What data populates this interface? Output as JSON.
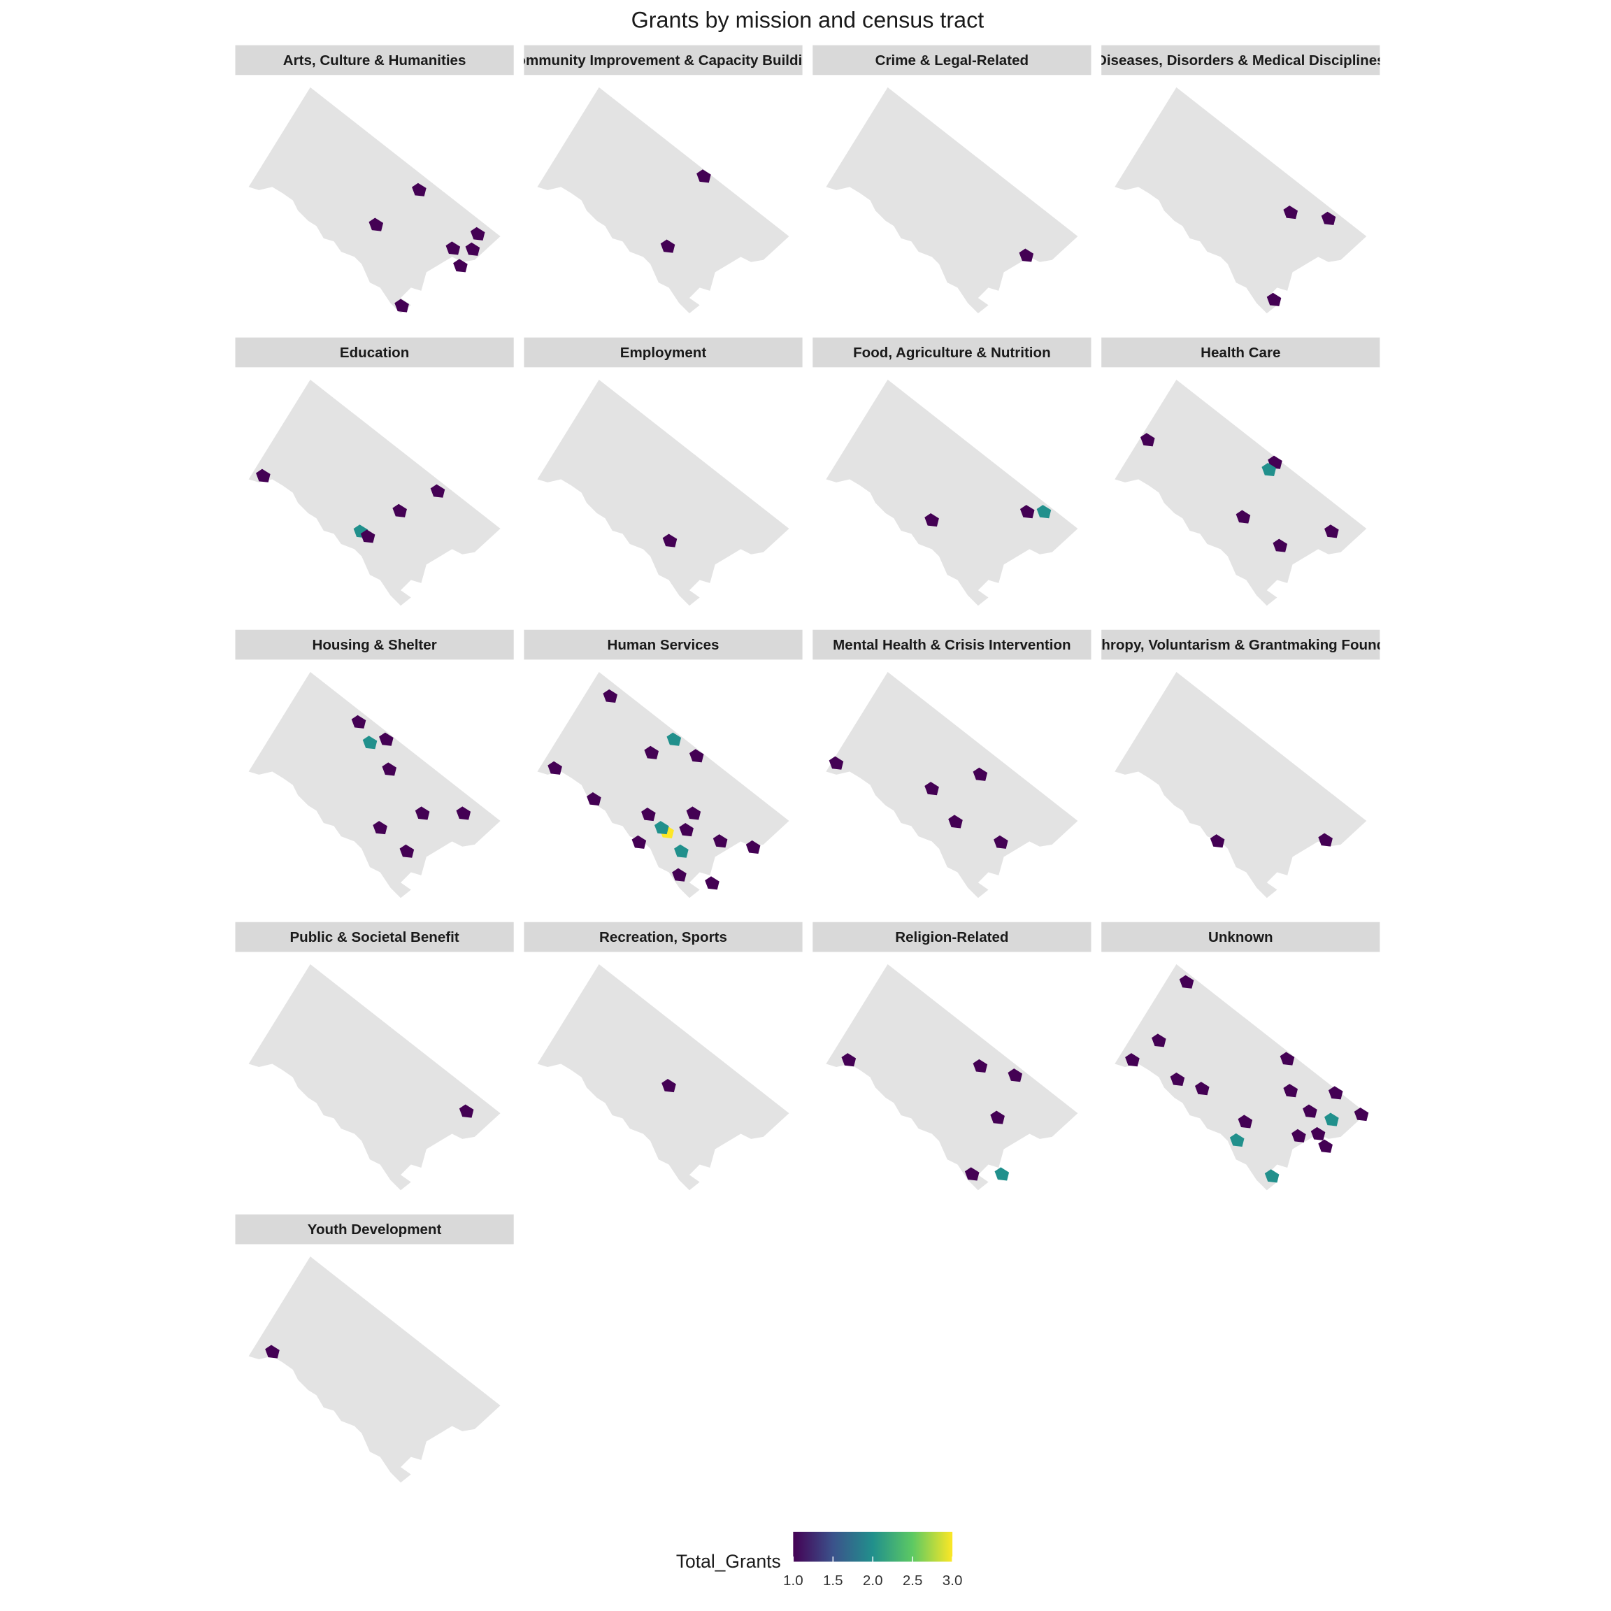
{
  "chart_data": {
    "type": "choropleth",
    "title": "Grants by mission and census tract",
    "legend_title": "Total_Grants",
    "xlim": [
      0,
      100
    ],
    "ylim": [
      0,
      100
    ],
    "clim": [
      1,
      3
    ],
    "colorscale": [
      "#440154",
      "#3b528b",
      "#21908c",
      "#5dc963",
      "#fde725"
    ],
    "base_color": "#e3e3e3",
    "cticks": [
      {
        "value": 1,
        "label": "1.0"
      },
      {
        "value": 1.5,
        "label": "1.5"
      },
      {
        "value": 2,
        "label": "2.0"
      },
      {
        "value": 2.5,
        "label": "2.5"
      },
      {
        "value": 3,
        "label": "3.0"
      }
    ],
    "facets": [
      {
        "name": "Arts, Culture & Humanities",
        "x": [
          67.7,
          50.8,
          90.7,
          88.7,
          81,
          83.9,
          60.9
        ],
        "y": [
          54.5,
          39.1,
          35,
          28.2,
          28.6,
          20.9,
          3.2
        ],
        "values": [
          1,
          1,
          1,
          1,
          1,
          1,
          1
        ]
      },
      {
        "name": "Community Improvement & Capacity Building",
        "x": [
          66.1,
          52
        ],
        "y": [
          60.5,
          29.5
        ],
        "values": [
          1,
          1
        ]
      },
      {
        "name": "Crime & Legal-Related",
        "x": [
          79.4
        ],
        "y": [
          25.5
        ],
        "values": [
          1
        ]
      },
      {
        "name": "Diseases, Disorders & Medical Disciplines",
        "x": [
          69.8,
          84.7,
          63.3
        ],
        "y": [
          44.5,
          41.8,
          5.9
        ],
        "values": [
          1,
          1,
          1
        ]
      },
      {
        "name": "Education",
        "x": [
          6.5,
          75,
          60.1,
          44.8,
          47.6
        ],
        "y": [
          57.3,
          50.5,
          41.8,
          32.7,
          30.5
        ],
        "values": [
          1,
          1,
          1,
          2,
          1
        ]
      },
      {
        "name": "Employment",
        "x": [
          52.8
        ],
        "y": [
          28.6
        ],
        "values": [
          1
        ]
      },
      {
        "name": "Food, Agriculture & Nutrition",
        "x": [
          42.3,
          79.8,
          86.3
        ],
        "y": [
          37.7,
          41.4,
          41.4
        ],
        "values": [
          1,
          1,
          2
        ]
      },
      {
        "name": "Health Care",
        "x": [
          13.7,
          63.7,
          61.3,
          51.2,
          65.7,
          85.9
        ],
        "y": [
          73.2,
          63.2,
          60,
          39.1,
          26.4,
          32.7
        ],
        "values": [
          1,
          1,
          2,
          1,
          1,
          1
        ]
      },
      {
        "name": "Housing & Shelter",
        "x": [
          44,
          48.4,
          54.8,
          56,
          69,
          85.1,
          52.4,
          62.9
        ],
        "y": [
          77.7,
          68.6,
          70,
          56.8,
          37.3,
          37.3,
          30.9,
          20.5
        ],
        "values": [
          1,
          2,
          1,
          1,
          1,
          1,
          1,
          1
        ]
      },
      {
        "name": "Human Services",
        "x": [
          29.4,
          54.4,
          45.6,
          63.3,
          7.7,
          23,
          44.4,
          62.1,
          51.6,
          40.7,
          59.3,
          72.6,
          85.5,
          57.3,
          56.5,
          69.4,
          49.6
        ],
        "y": [
          89.1,
          70,
          64.1,
          62.7,
          57.3,
          43.6,
          36.8,
          37.3,
          29.1,
          24.5,
          30,
          25,
          22.3,
          20.5,
          10,
          6.4,
          30.9
        ],
        "values": [
          1,
          2,
          1,
          1,
          1,
          1,
          1,
          1,
          3,
          1,
          1,
          1,
          1,
          2,
          1,
          1,
          2
        ]
      },
      {
        "name": "Mental Health & Crisis Intervention",
        "x": [
          4.8,
          42.3,
          61.3,
          51.6,
          69.4
        ],
        "y": [
          59.5,
          48.2,
          54.5,
          33.6,
          24.5
        ],
        "values": [
          1,
          1,
          1,
          1,
          1
        ]
      },
      {
        "name": "Philanthropy, Voluntarism & Grantmaking Foundations",
        "x": [
          41.1,
          83.5
        ],
        "y": [
          25,
          25.5
        ],
        "values": [
          1,
          1
        ]
      },
      {
        "name": "Public & Societal Benefit",
        "x": [
          86.3
        ],
        "y": [
          34.8
        ],
        "values": [
          1
        ]
      },
      {
        "name": "Recreation, Sports",
        "x": [
          52.4
        ],
        "y": [
          46.1
        ],
        "values": [
          1
        ]
      },
      {
        "name": "Religion-Related",
        "x": [
          9.7,
          61.3,
          75,
          68.1,
          58.1,
          69.8
        ],
        "y": [
          57.5,
          54.8,
          50.7,
          32,
          7,
          7
        ],
        "values": [
          1,
          1,
          1,
          1,
          1,
          2
        ]
      },
      {
        "name": "Unknown",
        "x": [
          29,
          18.1,
          7.7,
          25.4,
          35.1,
          68.5,
          69.8,
          87.5,
          77.4,
          85.9,
          97.6,
          52,
          48.8,
          73,
          80.6,
          83.5,
          62.5
        ],
        "y": [
          92,
          66.1,
          57.5,
          48.9,
          44.8,
          58,
          43.9,
          42.9,
          34.8,
          31.1,
          33.4,
          30.2,
          22,
          23.9,
          24.8,
          19.3,
          6.1
        ],
        "values": [
          1,
          1,
          1,
          1,
          1,
          1,
          1,
          1,
          1,
          2,
          1,
          1,
          2,
          1,
          1,
          1,
          2
        ]
      },
      {
        "name": "Youth Development",
        "x": [
          10.1
        ],
        "y": [
          57.7
        ],
        "values": [
          1
        ]
      }
    ]
  }
}
